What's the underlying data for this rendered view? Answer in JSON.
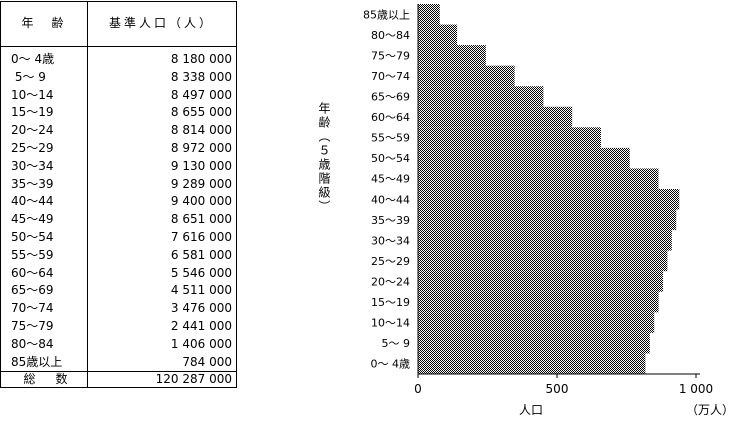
{
  "table": {
    "header_age": "年　齢",
    "header_pop": "基準人口（人）",
    "rows": [
      {
        "age": "0～ 4歳",
        "pop": "8 180 000"
      },
      {
        "age": " 5～ 9",
        "pop": "8 338 000"
      },
      {
        "age": "10～14",
        "pop": "8 497 000"
      },
      {
        "age": "15～19",
        "pop": "8 655 000"
      },
      {
        "age": "20～24",
        "pop": "8 814 000"
      },
      {
        "age": "25～29",
        "pop": "8 972 000"
      },
      {
        "age": "30～34",
        "pop": "9 130 000"
      },
      {
        "age": "35～39",
        "pop": "9 289 000"
      },
      {
        "age": "40～44",
        "pop": "9 400 000"
      },
      {
        "age": "45～49",
        "pop": "8 651 000"
      },
      {
        "age": "50～54",
        "pop": "7 616 000"
      },
      {
        "age": "55～59",
        "pop": "6 581 000"
      },
      {
        "age": "60～64",
        "pop": "5 546 000"
      },
      {
        "age": "65～69",
        "pop": "4 511 000"
      },
      {
        "age": "70～74",
        "pop": "3 476 000"
      },
      {
        "age": "75～79",
        "pop": "2 441 000"
      },
      {
        "age": "80～84",
        "pop": "1 406 000"
      },
      {
        "age": "85歳以上",
        "pop": "784 000"
      }
    ],
    "total_label": "総　数",
    "total_value": "120 287 000"
  },
  "chart_data": {
    "type": "bar",
    "orientation": "horizontal",
    "categories": [
      "0～ 4歳",
      "5～ 9",
      "10～14",
      "15～19",
      "20～24",
      "25～29",
      "30～34",
      "35～39",
      "40～44",
      "45～49",
      "50～54",
      "55～59",
      "60～64",
      "65～69",
      "70～74",
      "75～79",
      "80～84",
      "85歳以上"
    ],
    "values": [
      818.0,
      833.8,
      849.7,
      865.5,
      881.4,
      897.2,
      913.0,
      928.9,
      940.0,
      865.1,
      761.6,
      658.1,
      554.6,
      451.1,
      347.6,
      244.1,
      140.6,
      78.4
    ],
    "xlim": [
      0,
      1000
    ],
    "xticks": [
      "0",
      "500",
      "1 000"
    ],
    "xlabel": "人口",
    "xunit": "（万人）",
    "ylabel": "年齢（５歳階級）",
    "bar_fill": "stipple",
    "grid": false
  }
}
